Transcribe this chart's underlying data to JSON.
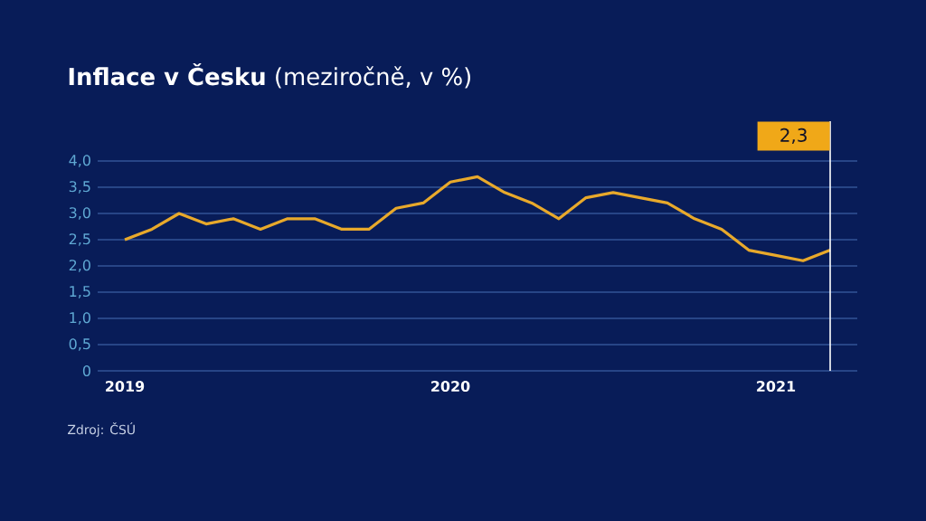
{
  "chart_data": {
    "type": "line",
    "title": "**Inflace v Česku** (meziročně, v %)",
    "x": [
      "2019-01",
      "2019-02",
      "2019-03",
      "2019-04",
      "2019-05",
      "2019-06",
      "2019-07",
      "2019-08",
      "2019-09",
      "2019-10",
      "2019-11",
      "2019-12",
      "2020-01",
      "2020-02",
      "2020-03",
      "2020-04",
      "2020-05",
      "2020-06",
      "2020-07",
      "2020-08",
      "2020-09",
      "2020-10",
      "2020-11",
      "2020-12",
      "2021-01",
      "2021-02",
      "2021-03"
    ],
    "series": [
      {
        "color": "#e8a92b",
        "values": [
          2.5,
          2.7,
          3.0,
          2.8,
          2.9,
          2.7,
          2.9,
          2.9,
          2.7,
          2.7,
          3.1,
          3.2,
          3.6,
          3.7,
          3.4,
          3.2,
          2.9,
          3.3,
          3.4,
          3.3,
          3.2,
          2.9,
          2.7,
          2.3,
          2.2,
          2.1,
          2.3
        ]
      }
    ],
    "xlim": [
      "2018-12",
      "2021-04"
    ],
    "xticks": [
      {
        "value": "2019-01",
        "label": "2019"
      },
      {
        "value": "2020-01",
        "label": "2020"
      },
      {
        "value": "2021-01",
        "label": "2021"
      }
    ],
    "ylim": [
      0,
      4.0
    ],
    "yticks": [
      0,
      {
        "value": 0.5,
        "label": "0,5"
      },
      {
        "value": 1.0,
        "label": "1,0"
      },
      {
        "value": 1.5,
        "label": "1,5"
      },
      {
        "value": 2.0,
        "label": "2,0"
      },
      {
        "value": 2.5,
        "label": "2,5"
      },
      {
        "value": 3.0,
        "label": "3,0"
      },
      {
        "value": 3.5,
        "label": "3,5"
      },
      {
        "value": 4.0,
        "label": "4,0"
      }
    ],
    "grid": "y",
    "marker": "none",
    "line_style": "solid",
    "ref_lines": [
      {
        "axis": "x",
        "value": "2021-03",
        "label": "2,3",
        "color": "#ffffff"
      }
    ],
    "annotations": [
      "Zdroj: ČSÚ"
    ]
  }
}
